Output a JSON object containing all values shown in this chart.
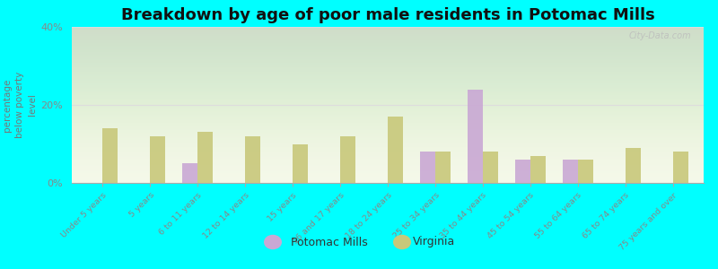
{
  "title": "Breakdown by age of poor male residents in Potomac Mills",
  "ylabel": "percentage\nbelow poverty\nlevel",
  "categories": [
    "Under 5 years",
    "5 years",
    "6 to 11 years",
    "12 to 14 years",
    "15 years",
    "16 and 17 years",
    "18 to 24 years",
    "25 to 34 years",
    "35 to 44 years",
    "45 to 54 years",
    "55 to 64 years",
    "65 to 74 years",
    "75 years and over"
  ],
  "potomac_mills": [
    0,
    0,
    5.0,
    0,
    0,
    0,
    0,
    8.0,
    24.0,
    6.0,
    6.0,
    0,
    0
  ],
  "virginia": [
    14.0,
    12.0,
    13.0,
    12.0,
    10.0,
    12.0,
    17.0,
    8.0,
    8.0,
    7.0,
    6.0,
    9.0,
    8.0
  ],
  "potomac_color": "#c9a8d4",
  "virginia_color": "#c8c87a",
  "background_color": "#00ffff",
  "plot_bg_color": "#f5f8e8",
  "ylim": [
    0,
    40
  ],
  "yticks": [
    0,
    20,
    40
  ],
  "ytick_labels": [
    "0%",
    "20%",
    "40%"
  ],
  "bar_width": 0.32,
  "watermark": "City-Data.com",
  "title_fontsize": 13,
  "legend_labels": [
    "Potomac Mills",
    "Virginia"
  ],
  "grid_color": "#dddddd",
  "tick_color": "#888888",
  "label_color": "#777777"
}
